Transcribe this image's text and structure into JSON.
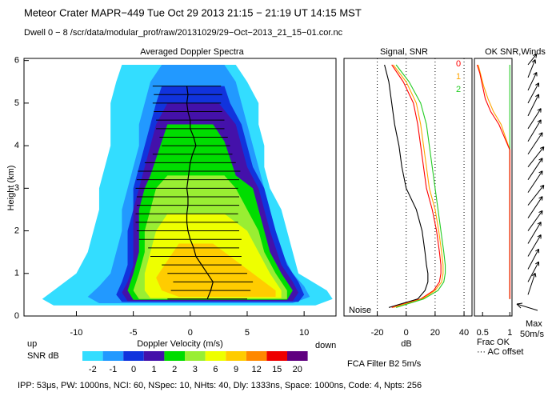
{
  "header": {
    "title": "Meteor Crater   MAPR−449   Tue Oct 29 2013 21:15 − 21:19 UT 14:15 MST",
    "subtitle": "Dwell  0 −  8   /scr/data/modular_prof/raw/20131029/29−Oct−2013_21_15−01.cor.nc"
  },
  "chart_data": [
    {
      "type": "contour",
      "title": "Averaged Doppler Spectra",
      "xlabel": "Doppler Velocity (m/s)",
      "ylabel": "Height (km)",
      "left_note": "up",
      "right_note": "down",
      "xlim": [
        -14.6,
        12.8
      ],
      "ylim": [
        0,
        6.05
      ],
      "xticks": [
        -10,
        -5,
        0,
        5,
        10
      ],
      "yticks": [
        0,
        1,
        2,
        3,
        4,
        5,
        6
      ],
      "colorbar": {
        "label": "SNR dB",
        "levels": [
          -2,
          -1,
          0,
          1,
          2,
          3,
          6,
          9,
          12,
          15,
          20
        ],
        "colors": [
          "#33ddff",
          "#2299ff",
          "#1133dd",
          "#4411aa",
          "#00dd00",
          "#99ee33",
          "#eeff00",
          "#ffcc00",
          "#ff8800",
          "#ee0000",
          "#600080"
        ]
      },
      "contours": [
        {
          "level": -2,
          "heights": [
            0.25,
            0.4,
            0.6,
            1,
            1.5,
            2,
            2.5,
            3,
            3.5,
            4,
            4.5,
            5,
            5.5,
            5.9
          ],
          "left": [
            -12,
            -13,
            -12,
            -10,
            -9,
            -8.5,
            -8,
            -8,
            -7.5,
            -7,
            -7,
            -7,
            -6.5,
            -6
          ],
          "right": [
            11,
            12.5,
            12,
            9.5,
            9,
            8.5,
            8,
            7,
            6.5,
            6.5,
            6,
            6,
            5,
            4
          ]
        },
        {
          "level": -1,
          "heights": [
            0.3,
            0.45,
            0.7,
            1,
            1.5,
            2,
            2.5,
            3,
            3.5,
            4,
            4.5,
            5,
            5.5,
            5.9
          ],
          "left": [
            -8,
            -9,
            -8,
            -7,
            -6.5,
            -6,
            -6,
            -5.5,
            -5,
            -4.5,
            -4.5,
            -4,
            -3.5,
            -2.5
          ],
          "right": [
            9,
            10.5,
            10,
            9,
            8,
            7.5,
            7,
            6.5,
            6,
            5.5,
            5,
            4.5,
            4,
            3
          ]
        },
        {
          "level": 0,
          "heights": [
            0.33,
            0.5,
            0.8,
            1.2,
            1.6,
            2,
            2.5,
            3,
            3.5,
            4,
            4.5,
            5,
            5.4
          ],
          "left": [
            -6,
            -6.5,
            -6,
            -5.5,
            -5.5,
            -5.5,
            -5,
            -5,
            -4.5,
            -4,
            -3.5,
            -3,
            -2.5
          ],
          "right": [
            9.5,
            10,
            9.5,
            8.5,
            8,
            7.5,
            7,
            6.5,
            5.5,
            5,
            4.5,
            3.5,
            3
          ]
        },
        {
          "level": 1,
          "heights": [
            0.35,
            0.55,
            0.8,
            1.2,
            1.6,
            2,
            2.5,
            3,
            3.5,
            4,
            4.5,
            5
          ],
          "left": [
            -5.5,
            -6,
            -5.5,
            -5,
            -5,
            -5,
            -5,
            -4.5,
            -4,
            -3.5,
            -3,
            -2
          ],
          "right": [
            9,
            9.5,
            9,
            8,
            7.5,
            7,
            6.5,
            6,
            5,
            4.5,
            4,
            2.5
          ]
        },
        {
          "level": 2,
          "heights": [
            0.38,
            0.6,
            1,
            1.5,
            2,
            2.5,
            3,
            3.3,
            3.7,
            4.1,
            4.5
          ],
          "left": [
            -5,
            -5.5,
            -5,
            -4.5,
            -4.5,
            -4.5,
            -4,
            -3.5,
            -3,
            -2.5,
            -2
          ],
          "right": [
            8.5,
            9,
            8,
            7,
            6.5,
            6,
            5.5,
            4,
            3.5,
            3,
            2
          ]
        },
        {
          "level": 3,
          "heights": [
            0.4,
            0.6,
            1,
            1.5,
            2,
            2.5,
            3,
            3.3
          ],
          "left": [
            -4.5,
            -5,
            -4.5,
            -4,
            -4,
            -3.5,
            -3,
            -2
          ],
          "right": [
            8.5,
            8.5,
            7.5,
            6.5,
            6,
            5,
            4,
            3
          ]
        },
        {
          "level": 6,
          "heights": [
            0.42,
            0.6,
            1,
            1.5,
            2,
            2.4
          ],
          "left": [
            -3.5,
            -4,
            -4,
            -3.5,
            -3,
            -2
          ],
          "right": [
            8,
            8,
            7,
            6,
            5,
            3
          ]
        },
        {
          "level": 9,
          "heights": [
            0.45,
            0.6,
            0.9,
            1.3,
            1.7
          ],
          "left": [
            -1,
            -2.5,
            -3,
            -2,
            -1
          ],
          "right": [
            7.5,
            7.5,
            6,
            4,
            2
          ]
        }
      ],
      "error_bars": {
        "heights": [
          0.4,
          0.6,
          0.8,
          1,
          1.2,
          1.4,
          1.6,
          1.8,
          2,
          2.2,
          2.4,
          2.6,
          2.8,
          3,
          3.2,
          3.4,
          3.6,
          3.8,
          4,
          4.2,
          4.4,
          4.6,
          4.8,
          5,
          5.2,
          5.4
        ],
        "centers": [
          1.5,
          1.8,
          2,
          1.5,
          1,
          0.5,
          0.3,
          0,
          -0.2,
          -0.3,
          -0.3,
          -0.2,
          -0.2,
          -0.3,
          -0.2,
          -0.1,
          0,
          0.2,
          0.5,
          0.3,
          0,
          0,
          -0.2,
          -0.3,
          -0.2,
          -0.3
        ],
        "half_widths": [
          3.5,
          3.5,
          3.5,
          3.5,
          3.5,
          4,
          4,
          4.5,
          4.5,
          4.5,
          4.5,
          4.5,
          4.5,
          4.5,
          4.5,
          4.5,
          4,
          3.5,
          3,
          3,
          3,
          3,
          3,
          3,
          3,
          3
        ]
      }
    },
    {
      "type": "line",
      "title": "Signal, SNR",
      "xlabel": "dB",
      "annotation": "Noise",
      "footnote": "FCA Filter B2  5m/s",
      "xlim": [
        -43,
        45.5
      ],
      "ylim": [
        0,
        6.05
      ],
      "xticks": [
        -20,
        0,
        20,
        40
      ],
      "grid": true,
      "heights": [
        0.2,
        0.4,
        0.6,
        0.8,
        1,
        1.2,
        1.5,
        2,
        2.5,
        3,
        3.5,
        4,
        4.5,
        5,
        5.5,
        5.9
      ],
      "series": [
        {
          "color": "#000000",
          "values": [
            -12,
            8,
            13,
            15,
            15,
            14,
            13,
            11,
            7,
            0,
            -3,
            -5,
            -8,
            -10,
            -12,
            -15
          ]
        },
        {
          "name": "0",
          "color": "#ff0000",
          "values": [
            -10,
            10,
            19,
            23,
            24,
            24,
            23,
            21,
            18,
            14,
            12,
            10,
            8,
            5,
            -2,
            -10
          ]
        },
        {
          "name": "1",
          "color": "#ffa500",
          "values": [
            -9,
            11,
            20,
            24.5,
            25.5,
            25.5,
            24.5,
            22.5,
            20,
            16,
            14,
            12,
            10,
            7,
            0,
            -9
          ]
        },
        {
          "name": "2",
          "color": "#22cc22",
          "values": [
            -7,
            12,
            22,
            26,
            27,
            27,
            26,
            24,
            22,
            20,
            18,
            16,
            14,
            10,
            2,
            -7
          ]
        }
      ]
    },
    {
      "type": "line",
      "title": "OK SNR,Winds",
      "xlabel": "Frac OK",
      "note": "··· AC offset",
      "xlim": [
        0.35,
        1.04
      ],
      "ylim": [
        0,
        6.05
      ],
      "xticks": [
        0.5,
        1
      ],
      "heights": [
        0.4,
        1,
        2,
        3,
        3.9,
        4.2,
        4.5,
        4.8,
        5.1,
        5.4,
        5.7,
        5.9
      ],
      "series": [
        {
          "color": "#22cc22",
          "values": [
            1,
            1,
            1,
            1,
            1,
            1,
            1,
            1,
            1,
            1,
            1,
            1
          ]
        },
        {
          "color": "#ffa500",
          "values": [
            1,
            1,
            1,
            1,
            1,
            0.92,
            0.84,
            0.7,
            0.6,
            0.52,
            0.46,
            0.42
          ]
        },
        {
          "color": "#ff0000",
          "values": [
            1,
            1,
            1,
            1,
            1,
            0.9,
            0.8,
            0.65,
            0.55,
            0.5,
            0.45,
            0.4
          ]
        }
      ]
    },
    {
      "type": "wind",
      "ylim": [
        0,
        6.05
      ],
      "reference_label": "Max",
      "reference_speed": "50m/s",
      "heights": [
        0.5,
        0.8,
        1.1,
        1.4,
        1.7,
        2,
        2.3,
        2.6,
        2.9,
        3.2,
        3.5,
        3.8,
        4.1,
        4.4,
        4.7,
        5,
        5.3,
        5.6,
        5.9
      ],
      "u": [
        10,
        15,
        15,
        18,
        18,
        20,
        20,
        22,
        20,
        20,
        22,
        20,
        18,
        18,
        15,
        15,
        12,
        10,
        12
      ],
      "v": [
        30,
        28,
        28,
        30,
        30,
        28,
        30,
        28,
        30,
        30,
        28,
        30,
        30,
        28,
        30,
        28,
        25,
        25,
        15
      ]
    }
  ],
  "footer": "IPP: 53μs,  PW: 1000ns,  NCI: 60,  NSpec: 10,  NHts: 40,  Dly: 1333ns,  Space: 1000ns,  Code: 4,  Npts: 256"
}
